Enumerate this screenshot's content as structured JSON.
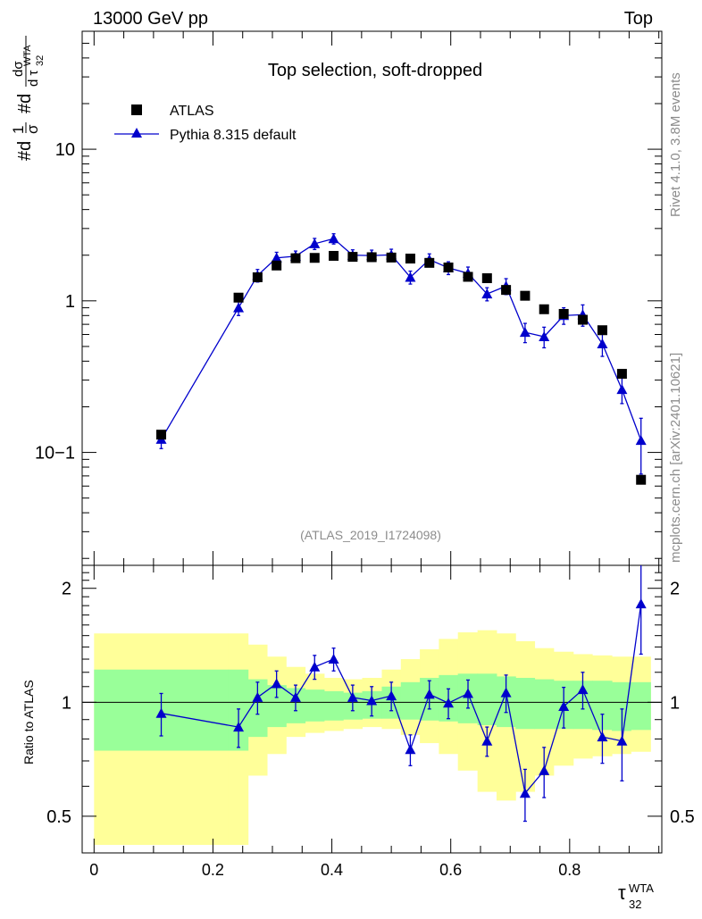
{
  "header": {
    "left": "13000 GeV pp",
    "right": "Top"
  },
  "side": {
    "rivet": "Rivet 4.1.0,  3.8M events",
    "mcplots": "mcplots.cern.ch [arXiv:2401.10621]"
  },
  "chart_data": {
    "type": "scatter",
    "title": "Top selection, soft-dropped",
    "analysis": "(ATLAS_2019_I1724098)",
    "xlabel": "τ32WTA",
    "ylabel": "#d1σ #ddσdτ32WTA",
    "ratio_ylabel": "Ratio to ATLAS",
    "xlim": [
      -0.02,
      0.955
    ],
    "ylim_main": [
      0.018,
      60
    ],
    "ylim_ratio": [
      0.4,
      2.3
    ],
    "x_ticks": [
      "0",
      "0.2",
      "0.4",
      "0.6",
      "0.8"
    ],
    "y_ticks_main": [
      "10−1",
      "1",
      "10"
    ],
    "y_ticks_ratio": [
      "0.5",
      "1",
      "2"
    ],
    "legend": {
      "position": "top-left",
      "data_label": "ATLAS",
      "mc_label": "Pythia 8.315 default"
    },
    "colors": {
      "data": "#000000",
      "mc": "#0000cc",
      "band_inner": "#99ff99",
      "band_outer": "#ffff99"
    },
    "x": [
      0.113,
      0.243,
      0.275,
      0.307,
      0.339,
      0.371,
      0.403,
      0.435,
      0.467,
      0.5,
      0.532,
      0.564,
      0.596,
      0.629,
      0.661,
      0.693,
      0.725,
      0.757,
      0.79,
      0.822,
      0.855,
      0.888,
      0.92
    ],
    "series": [
      {
        "name": "ATLAS",
        "values": [
          0.131,
          1.05,
          1.43,
          1.71,
          1.91,
          1.92,
          1.98,
          1.95,
          1.94,
          1.93,
          1.9,
          1.78,
          1.66,
          1.44,
          1.41,
          1.18,
          1.08,
          0.88,
          0.82,
          0.75,
          0.64,
          0.33,
          0.066
        ]
      },
      {
        "name": "Pythia 8.315 default",
        "values": [
          0.122,
          0.9,
          1.47,
          1.92,
          1.97,
          2.38,
          2.57,
          2.0,
          1.99,
          2.01,
          1.43,
          1.87,
          1.65,
          1.52,
          1.11,
          1.25,
          0.62,
          0.58,
          0.8,
          0.81,
          0.52,
          0.26,
          0.12
        ],
        "err": [
          0.016,
          0.1,
          0.14,
          0.17,
          0.16,
          0.2,
          0.2,
          0.17,
          0.17,
          0.18,
          0.14,
          0.17,
          0.16,
          0.15,
          0.11,
          0.15,
          0.09,
          0.09,
          0.1,
          0.13,
          0.09,
          0.05,
          0.048
        ]
      }
    ],
    "ratio": {
      "values": [
        0.935,
        0.86,
        1.03,
        1.12,
        1.03,
        1.24,
        1.3,
        1.03,
        1.01,
        1.04,
        0.75,
        1.05,
        0.995,
        1.055,
        0.79,
        1.06,
        0.575,
        0.66,
        0.975,
        1.08,
        0.81,
        0.79,
        1.82
      ],
      "err": [
        0.12,
        0.1,
        0.1,
        0.09,
        0.08,
        0.09,
        0.09,
        0.08,
        0.09,
        0.09,
        0.07,
        0.09,
        0.09,
        0.09,
        0.07,
        0.12,
        0.09,
        0.1,
        0.12,
        0.12,
        0.12,
        0.17,
        0.48
      ]
    },
    "bands": {
      "edges": [
        0.0,
        0.226,
        0.259,
        0.291,
        0.323,
        0.355,
        0.387,
        0.419,
        0.451,
        0.484,
        0.516,
        0.548,
        0.58,
        0.612,
        0.645,
        0.677,
        0.709,
        0.741,
        0.773,
        0.806,
        0.838,
        0.871,
        0.903,
        0.936
      ],
      "inner_lo": [
        0.745,
        0.745,
        0.81,
        0.86,
        0.88,
        0.89,
        0.895,
        0.9,
        0.905,
        0.905,
        0.9,
        0.895,
        0.89,
        0.88,
        0.87,
        0.86,
        0.85,
        0.85,
        0.85,
        0.85,
        0.845,
        0.84,
        0.845
      ],
      "inner_hi": [
        1.22,
        1.22,
        1.15,
        1.11,
        1.09,
        1.08,
        1.07,
        1.06,
        1.07,
        1.1,
        1.13,
        1.16,
        1.18,
        1.19,
        1.19,
        1.17,
        1.16,
        1.15,
        1.14,
        1.14,
        1.14,
        1.13,
        1.13
      ],
      "outer_lo": [
        0.42,
        0.42,
        0.64,
        0.73,
        0.81,
        0.83,
        0.84,
        0.85,
        0.86,
        0.85,
        0.82,
        0.78,
        0.73,
        0.66,
        0.58,
        0.55,
        0.58,
        0.64,
        0.68,
        0.71,
        0.72,
        0.73,
        0.74
      ],
      "outer_hi": [
        1.52,
        1.52,
        1.42,
        1.32,
        1.24,
        1.19,
        1.16,
        1.15,
        1.16,
        1.22,
        1.3,
        1.38,
        1.47,
        1.53,
        1.55,
        1.52,
        1.45,
        1.39,
        1.36,
        1.34,
        1.33,
        1.32,
        1.32
      ]
    }
  }
}
